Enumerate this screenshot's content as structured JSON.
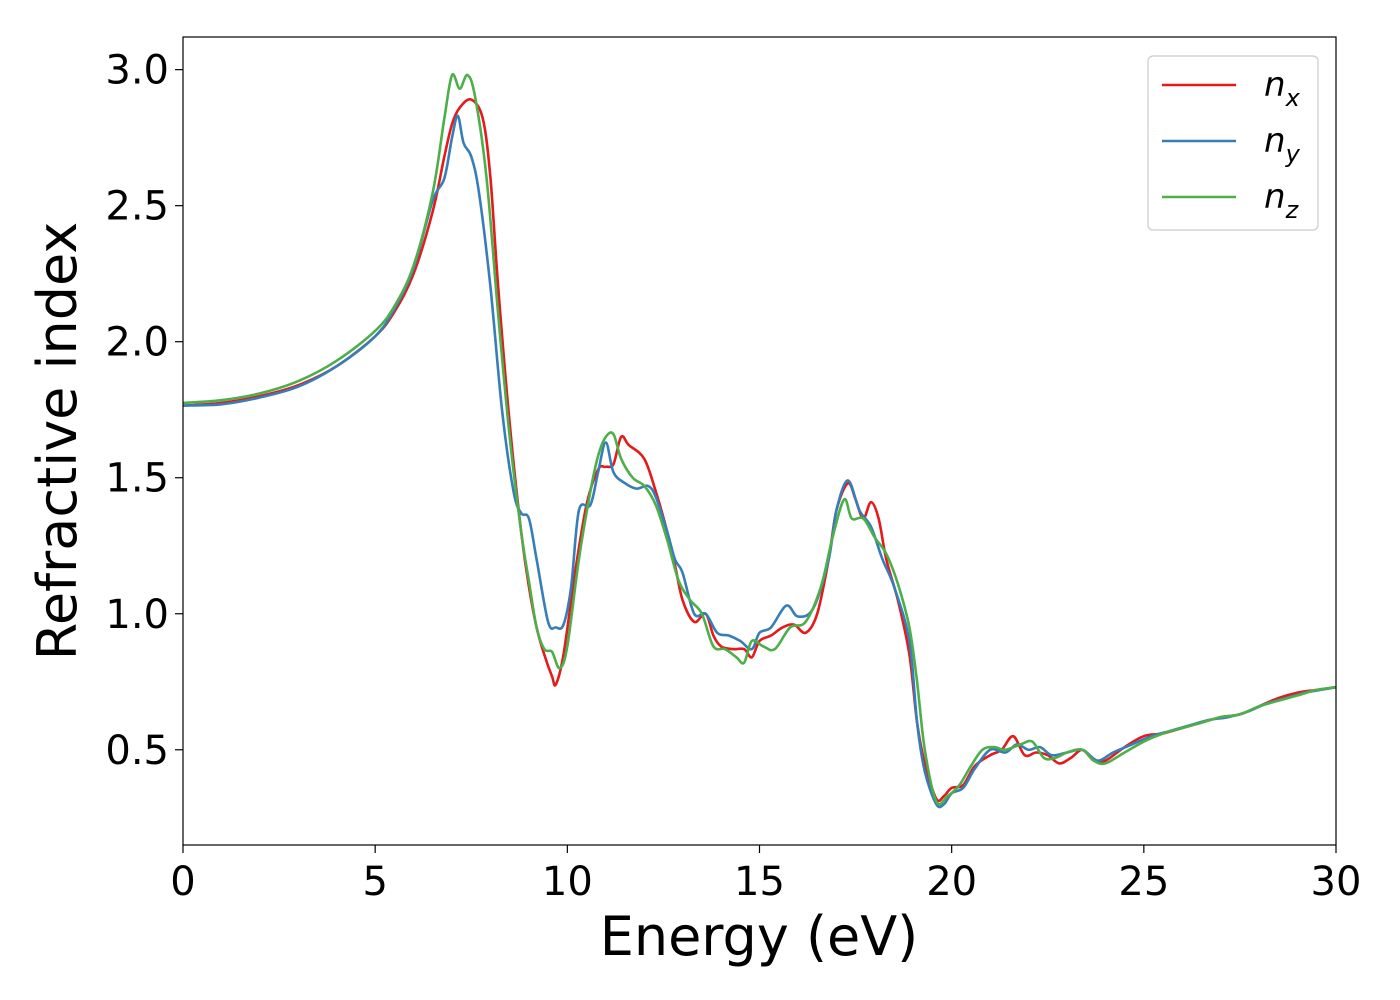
{
  "chart_data": {
    "type": "line",
    "title": "",
    "xlabel": "Energy (eV)",
    "ylabel": "Refractive index",
    "xlim": [
      0,
      30
    ],
    "ylim": [
      0.15,
      3.12
    ],
    "xticks": [
      0,
      5,
      10,
      15,
      20,
      25,
      30
    ],
    "yticks": [
      0.5,
      1.0,
      1.5,
      2.0,
      2.5,
      3.0
    ],
    "xtick_labels": [
      "0",
      "5",
      "10",
      "15",
      "20",
      "25",
      "30"
    ],
    "ytick_labels": [
      "0.5",
      "1.0",
      "1.5",
      "2.0",
      "2.5",
      "3.0"
    ],
    "grid": false,
    "legend": {
      "placement": "top-right"
    },
    "series": [
      {
        "name": "n_x",
        "label_main": "n",
        "label_sub": "x",
        "color": "#e41a1c",
        "points": [
          [
            0,
            1.765
          ],
          [
            1,
            1.775
          ],
          [
            2,
            1.8
          ],
          [
            3,
            1.84
          ],
          [
            4,
            1.91
          ],
          [
            5,
            2.02
          ],
          [
            5.5,
            2.11
          ],
          [
            6,
            2.25
          ],
          [
            6.5,
            2.48
          ],
          [
            6.8,
            2.68
          ],
          [
            7.0,
            2.8
          ],
          [
            7.2,
            2.86
          ],
          [
            7.5,
            2.89
          ],
          [
            7.8,
            2.82
          ],
          [
            8.0,
            2.6
          ],
          [
            8.2,
            2.2
          ],
          [
            8.5,
            1.7
          ],
          [
            8.8,
            1.3
          ],
          [
            9.0,
            1.1
          ],
          [
            9.2,
            0.95
          ],
          [
            9.4,
            0.85
          ],
          [
            9.6,
            0.77
          ],
          [
            9.7,
            0.74
          ],
          [
            9.9,
            0.85
          ],
          [
            10.2,
            1.15
          ],
          [
            10.5,
            1.4
          ],
          [
            10.8,
            1.53
          ],
          [
            11.0,
            1.54
          ],
          [
            11.2,
            1.55
          ],
          [
            11.4,
            1.65
          ],
          [
            11.6,
            1.62
          ],
          [
            12.0,
            1.57
          ],
          [
            12.3,
            1.45
          ],
          [
            12.6,
            1.3
          ],
          [
            12.8,
            1.18
          ],
          [
            13.0,
            1.05
          ],
          [
            13.3,
            0.97
          ],
          [
            13.6,
            1.0
          ],
          [
            13.8,
            0.92
          ],
          [
            14.0,
            0.88
          ],
          [
            14.3,
            0.87
          ],
          [
            14.6,
            0.87
          ],
          [
            14.8,
            0.84
          ],
          [
            15.0,
            0.9
          ],
          [
            15.3,
            0.92
          ],
          [
            15.6,
            0.95
          ],
          [
            15.9,
            0.96
          ],
          [
            16.2,
            0.93
          ],
          [
            16.5,
            1.0
          ],
          [
            16.8,
            1.2
          ],
          [
            17.0,
            1.38
          ],
          [
            17.3,
            1.48
          ],
          [
            17.5,
            1.42
          ],
          [
            17.7,
            1.35
          ],
          [
            17.9,
            1.41
          ],
          [
            18.1,
            1.35
          ],
          [
            18.3,
            1.2
          ],
          [
            18.6,
            1.05
          ],
          [
            18.9,
            0.85
          ],
          [
            19.1,
            0.6
          ],
          [
            19.3,
            0.45
          ],
          [
            19.6,
            0.32
          ],
          [
            19.8,
            0.33
          ],
          [
            20.0,
            0.36
          ],
          [
            20.3,
            0.37
          ],
          [
            20.6,
            0.44
          ],
          [
            21.0,
            0.48
          ],
          [
            21.3,
            0.5
          ],
          [
            21.6,
            0.55
          ],
          [
            21.9,
            0.48
          ],
          [
            22.2,
            0.49
          ],
          [
            22.5,
            0.48
          ],
          [
            22.8,
            0.45
          ],
          [
            23.1,
            0.47
          ],
          [
            23.4,
            0.5
          ],
          [
            23.7,
            0.46
          ],
          [
            24.0,
            0.46
          ],
          [
            24.5,
            0.51
          ],
          [
            25.0,
            0.55
          ],
          [
            25.5,
            0.56
          ],
          [
            26.0,
            0.58
          ],
          [
            26.5,
            0.6
          ],
          [
            27.0,
            0.62
          ],
          [
            27.5,
            0.63
          ],
          [
            28.0,
            0.66
          ],
          [
            28.5,
            0.69
          ],
          [
            29.0,
            0.71
          ],
          [
            29.5,
            0.72
          ],
          [
            30.0,
            0.73
          ]
        ]
      },
      {
        "name": "n_y",
        "label_main": "n",
        "label_sub": "y",
        "color": "#377eb8",
        "points": [
          [
            0,
            1.765
          ],
          [
            1,
            1.77
          ],
          [
            2,
            1.795
          ],
          [
            3,
            1.835
          ],
          [
            4,
            1.91
          ],
          [
            5,
            2.02
          ],
          [
            5.5,
            2.12
          ],
          [
            6,
            2.27
          ],
          [
            6.5,
            2.52
          ],
          [
            6.8,
            2.6
          ],
          [
            7.0,
            2.75
          ],
          [
            7.15,
            2.83
          ],
          [
            7.3,
            2.73
          ],
          [
            7.5,
            2.68
          ],
          [
            7.7,
            2.55
          ],
          [
            8.0,
            2.2
          ],
          [
            8.3,
            1.75
          ],
          [
            8.6,
            1.45
          ],
          [
            8.8,
            1.37
          ],
          [
            9.0,
            1.35
          ],
          [
            9.2,
            1.2
          ],
          [
            9.5,
            0.97
          ],
          [
            9.7,
            0.95
          ],
          [
            9.9,
            0.96
          ],
          [
            10.1,
            1.1
          ],
          [
            10.3,
            1.38
          ],
          [
            10.6,
            1.4
          ],
          [
            10.8,
            1.52
          ],
          [
            11.0,
            1.63
          ],
          [
            11.2,
            1.52
          ],
          [
            11.5,
            1.48
          ],
          [
            11.8,
            1.46
          ],
          [
            12.1,
            1.47
          ],
          [
            12.3,
            1.43
          ],
          [
            12.6,
            1.3
          ],
          [
            12.8,
            1.2
          ],
          [
            13.0,
            1.15
          ],
          [
            13.3,
            1.0
          ],
          [
            13.6,
            1.0
          ],
          [
            13.9,
            0.93
          ],
          [
            14.2,
            0.92
          ],
          [
            14.5,
            0.9
          ],
          [
            14.8,
            0.87
          ],
          [
            15.0,
            0.93
          ],
          [
            15.3,
            0.95
          ],
          [
            15.7,
            1.03
          ],
          [
            16.0,
            0.99
          ],
          [
            16.4,
            1.02
          ],
          [
            16.8,
            1.2
          ],
          [
            17.0,
            1.38
          ],
          [
            17.3,
            1.49
          ],
          [
            17.6,
            1.38
          ],
          [
            17.9,
            1.32
          ],
          [
            18.2,
            1.2
          ],
          [
            18.5,
            1.1
          ],
          [
            18.9,
            0.9
          ],
          [
            19.1,
            0.6
          ],
          [
            19.3,
            0.42
          ],
          [
            19.6,
            0.3
          ],
          [
            19.8,
            0.3
          ],
          [
            20.0,
            0.34
          ],
          [
            20.3,
            0.36
          ],
          [
            20.6,
            0.43
          ],
          [
            21.0,
            0.5
          ],
          [
            21.4,
            0.49
          ],
          [
            21.7,
            0.52
          ],
          [
            22.0,
            0.5
          ],
          [
            22.3,
            0.51
          ],
          [
            22.6,
            0.48
          ],
          [
            23.0,
            0.49
          ],
          [
            23.4,
            0.5
          ],
          [
            23.8,
            0.46
          ],
          [
            24.2,
            0.49
          ],
          [
            24.7,
            0.52
          ],
          [
            25.2,
            0.55
          ],
          [
            25.7,
            0.57
          ],
          [
            26.2,
            0.59
          ],
          [
            26.7,
            0.61
          ],
          [
            27.2,
            0.62
          ],
          [
            27.7,
            0.64
          ],
          [
            28.2,
            0.67
          ],
          [
            28.7,
            0.69
          ],
          [
            29.2,
            0.71
          ],
          [
            29.6,
            0.72
          ],
          [
            30.0,
            0.73
          ]
        ]
      },
      {
        "name": "n_z",
        "label_main": "n",
        "label_sub": "z",
        "color": "#4daf4a",
        "points": [
          [
            0,
            1.775
          ],
          [
            1,
            1.785
          ],
          [
            2,
            1.81
          ],
          [
            3,
            1.855
          ],
          [
            4,
            1.93
          ],
          [
            5,
            2.04
          ],
          [
            5.5,
            2.13
          ],
          [
            6,
            2.28
          ],
          [
            6.5,
            2.55
          ],
          [
            6.8,
            2.82
          ],
          [
            7.0,
            2.98
          ],
          [
            7.2,
            2.93
          ],
          [
            7.4,
            2.98
          ],
          [
            7.6,
            2.9
          ],
          [
            7.9,
            2.6
          ],
          [
            8.2,
            2.1
          ],
          [
            8.5,
            1.65
          ],
          [
            8.8,
            1.3
          ],
          [
            9.0,
            1.12
          ],
          [
            9.2,
            0.95
          ],
          [
            9.4,
            0.87
          ],
          [
            9.6,
            0.86
          ],
          [
            9.8,
            0.8
          ],
          [
            10.0,
            0.88
          ],
          [
            10.3,
            1.2
          ],
          [
            10.6,
            1.45
          ],
          [
            10.8,
            1.58
          ],
          [
            11.0,
            1.65
          ],
          [
            11.2,
            1.66
          ],
          [
            11.4,
            1.57
          ],
          [
            11.7,
            1.5
          ],
          [
            12.0,
            1.47
          ],
          [
            12.3,
            1.4
          ],
          [
            12.6,
            1.27
          ],
          [
            12.9,
            1.12
          ],
          [
            13.2,
            1.05
          ],
          [
            13.5,
            1.0
          ],
          [
            13.8,
            0.88
          ],
          [
            14.1,
            0.87
          ],
          [
            14.4,
            0.84
          ],
          [
            14.6,
            0.82
          ],
          [
            14.8,
            0.9
          ],
          [
            15.1,
            0.88
          ],
          [
            15.4,
            0.87
          ],
          [
            15.8,
            0.95
          ],
          [
            16.2,
            0.97
          ],
          [
            16.6,
            1.1
          ],
          [
            16.9,
            1.28
          ],
          [
            17.2,
            1.42
          ],
          [
            17.4,
            1.35
          ],
          [
            17.7,
            1.35
          ],
          [
            18.0,
            1.28
          ],
          [
            18.3,
            1.22
          ],
          [
            18.6,
            1.11
          ],
          [
            18.9,
            0.95
          ],
          [
            19.1,
            0.75
          ],
          [
            19.3,
            0.5
          ],
          [
            19.6,
            0.31
          ],
          [
            19.9,
            0.33
          ],
          [
            20.2,
            0.37
          ],
          [
            20.5,
            0.44
          ],
          [
            20.8,
            0.5
          ],
          [
            21.1,
            0.51
          ],
          [
            21.4,
            0.5
          ],
          [
            21.8,
            0.52
          ],
          [
            22.1,
            0.53
          ],
          [
            22.4,
            0.47
          ],
          [
            22.7,
            0.47
          ],
          [
            23.0,
            0.49
          ],
          [
            23.4,
            0.5
          ],
          [
            23.7,
            0.46
          ],
          [
            24.0,
            0.45
          ],
          [
            24.5,
            0.49
          ],
          [
            25.0,
            0.53
          ],
          [
            25.5,
            0.56
          ],
          [
            26.0,
            0.58
          ],
          [
            26.5,
            0.6
          ],
          [
            27.0,
            0.62
          ],
          [
            27.5,
            0.63
          ],
          [
            28.0,
            0.66
          ],
          [
            28.5,
            0.68
          ],
          [
            29.0,
            0.7
          ],
          [
            29.5,
            0.72
          ],
          [
            30.0,
            0.73
          ]
        ]
      }
    ]
  }
}
